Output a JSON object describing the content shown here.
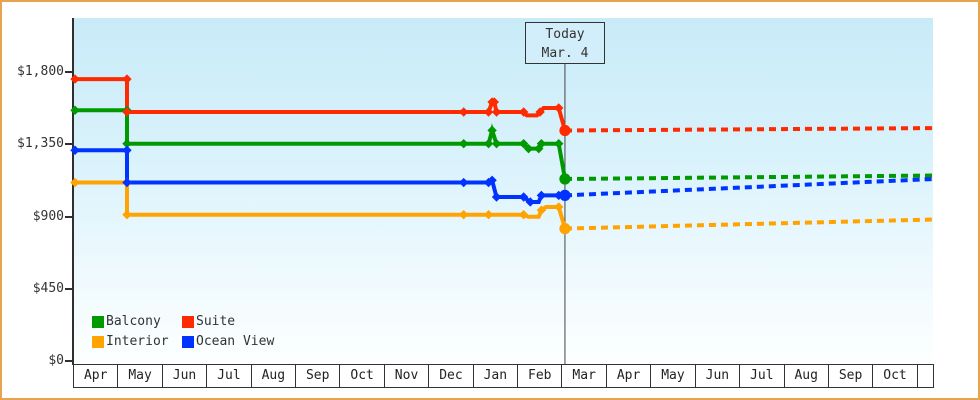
{
  "window": {
    "outer_border_color": "#e7a44f",
    "background": "#ffffff"
  },
  "legend": {
    "items": [
      {
        "label": "Balcony",
        "color": "#009a00"
      },
      {
        "label": "Suite",
        "color": "#ff2b00"
      },
      {
        "label": "Interior",
        "color": "#ffa300"
      },
      {
        "label": "Ocean View",
        "color": "#0033ff"
      }
    ]
  },
  "chart_data": {
    "type": "line",
    "title": "",
    "xlabel": "",
    "ylabel": "",
    "grid": false,
    "legend_position": "bottom-left-inside",
    "y_axis": {
      "ticks": [
        {
          "label": "$1,800",
          "value": 1800
        },
        {
          "label": "$1,350",
          "value": 1350
        },
        {
          "label": "$900",
          "value": 900
        },
        {
          "label": "$450",
          "value": 450
        },
        {
          "label": "$0",
          "value": 0
        }
      ],
      "range": [
        0,
        2135
      ]
    },
    "x_axis": {
      "months": [
        "Apr",
        "May",
        "Jun",
        "Jul",
        "Aug",
        "Sep",
        "Oct",
        "Nov",
        "Dec",
        "Jan",
        "Feb",
        "Mar",
        "Apr",
        "May",
        "Jun",
        "Jul",
        "Aug",
        "Sep",
        "Oct"
      ]
    },
    "today": {
      "line1": "Today",
      "line2": "Mar. 4",
      "month_position": 11.03
    },
    "projection_end_month": 19.32,
    "series": [
      {
        "name": "Balcony",
        "color": "#009a00",
        "solid": [
          [
            0,
            1562,
            1
          ],
          [
            1.17,
            1562,
            1
          ],
          [
            1.17,
            1354,
            1
          ],
          [
            8.75,
            1354,
            1
          ],
          [
            9.31,
            1354,
            1
          ],
          [
            9.39,
            1437,
            1
          ],
          [
            9.49,
            1354,
            1
          ],
          [
            10.1,
            1354,
            1
          ],
          [
            10.21,
            1323,
            1
          ],
          [
            10.44,
            1323,
            1
          ],
          [
            10.5,
            1354,
            1
          ],
          [
            10.89,
            1354,
            1
          ],
          [
            11.03,
            1134,
            9
          ]
        ],
        "projected": [
          [
            11.03,
            1134
          ],
          [
            19.32,
            1156
          ]
        ]
      },
      {
        "name": "Suite",
        "color": "#ff2b00",
        "solid": [
          [
            0,
            1756,
            1
          ],
          [
            1.17,
            1756,
            1
          ],
          [
            1.17,
            1551,
            1
          ],
          [
            8.75,
            1551,
            1
          ],
          [
            9.31,
            1551,
            1
          ],
          [
            9.39,
            1613,
            1
          ],
          [
            9.44,
            1613,
            1
          ],
          [
            9.49,
            1551,
            1
          ],
          [
            10.1,
            1551,
            1
          ],
          [
            10.17,
            1530,
            0
          ],
          [
            10.4,
            1530,
            0
          ],
          [
            10.47,
            1551,
            1
          ],
          [
            10.55,
            1576,
            0
          ],
          [
            10.89,
            1576,
            1
          ],
          [
            11.03,
            1436,
            9
          ]
        ],
        "projected": [
          [
            11.03,
            1436
          ],
          [
            19.32,
            1451
          ]
        ]
      },
      {
        "name": "Interior",
        "color": "#ffa300",
        "solid": [
          [
            0,
            1112,
            1
          ],
          [
            1.17,
            1112,
            1
          ],
          [
            1.17,
            912,
            1
          ],
          [
            8.75,
            912,
            1
          ],
          [
            9.31,
            912,
            1
          ],
          [
            10.1,
            912,
            1
          ],
          [
            10.21,
            899,
            0
          ],
          [
            10.44,
            899,
            0
          ],
          [
            10.5,
            940,
            1
          ],
          [
            10.6,
            960,
            0
          ],
          [
            10.89,
            960,
            1
          ],
          [
            11.03,
            825,
            9
          ]
        ],
        "projected": [
          [
            11.03,
            825
          ],
          [
            19.32,
            882
          ]
        ]
      },
      {
        "name": "Ocean View",
        "color": "#0033ff",
        "solid": [
          [
            0,
            1313,
            1
          ],
          [
            1.17,
            1313,
            1
          ],
          [
            1.17,
            1112,
            1
          ],
          [
            8.75,
            1112,
            1
          ],
          [
            9.31,
            1112,
            1
          ],
          [
            9.39,
            1126,
            1
          ],
          [
            9.49,
            1022,
            1
          ],
          [
            10.1,
            1022,
            1
          ],
          [
            10.25,
            991,
            1
          ],
          [
            10.44,
            991,
            0
          ],
          [
            10.5,
            1032,
            1
          ],
          [
            10.89,
            1032,
            1
          ],
          [
            11.03,
            1032,
            9
          ]
        ],
        "projected": [
          [
            11.03,
            1032
          ],
          [
            19.32,
            1134
          ]
        ]
      }
    ]
  }
}
